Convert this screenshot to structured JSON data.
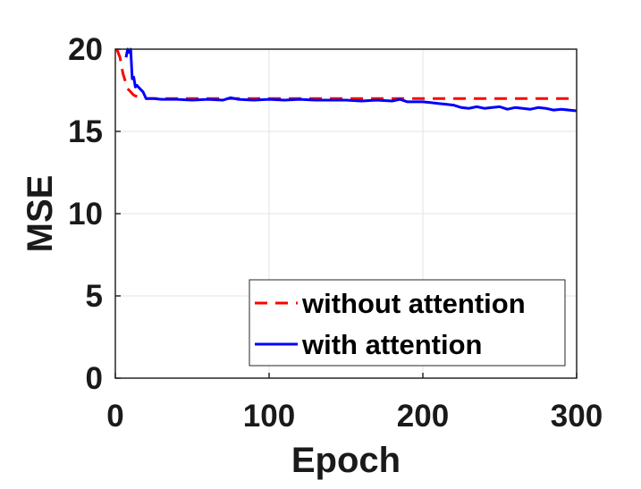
{
  "chart_data": {
    "type": "line",
    "xlabel": "Epoch",
    "ylabel": "MSE",
    "xlim": [
      0,
      300
    ],
    "ylim": [
      0,
      20
    ],
    "xticks": [
      "0",
      "100",
      "200",
      "300"
    ],
    "yticks": [
      "0",
      "5",
      "10",
      "15",
      "20"
    ],
    "grid": true,
    "legend_position": "bottom-right",
    "series": [
      {
        "name": "without attention",
        "color": "#ff0000",
        "style": "dashed",
        "x": [
          1,
          3,
          5,
          8,
          12,
          16,
          20,
          30,
          50,
          100,
          150,
          200,
          250,
          300
        ],
        "y": [
          20,
          19.5,
          18.5,
          17.6,
          17.2,
          17.05,
          17.0,
          17.0,
          17.0,
          17.0,
          17.0,
          17.0,
          17.0,
          17.0
        ]
      },
      {
        "name": "with attention",
        "color": "#0000ff",
        "style": "solid",
        "x": [
          7,
          8,
          9,
          10,
          11,
          12,
          13,
          14,
          16,
          18,
          20,
          25,
          30,
          40,
          50,
          60,
          70,
          75,
          80,
          90,
          100,
          110,
          120,
          130,
          140,
          150,
          160,
          170,
          180,
          185,
          190,
          200,
          205,
          210,
          215,
          220,
          225,
          230,
          235,
          240,
          245,
          250,
          255,
          260,
          265,
          270,
          275,
          280,
          285,
          290,
          295,
          300
        ],
        "y": [
          19.5,
          20,
          19.8,
          20,
          18.2,
          18.3,
          17.7,
          17.8,
          17.6,
          17.4,
          17.0,
          17.0,
          16.95,
          16.95,
          16.9,
          16.95,
          16.9,
          17.05,
          16.95,
          16.9,
          16.95,
          16.9,
          16.95,
          16.9,
          16.9,
          16.9,
          16.85,
          16.9,
          16.85,
          16.95,
          16.8,
          16.8,
          16.75,
          16.7,
          16.65,
          16.6,
          16.45,
          16.4,
          16.5,
          16.4,
          16.45,
          16.5,
          16.35,
          16.45,
          16.4,
          16.35,
          16.45,
          16.4,
          16.3,
          16.35,
          16.3,
          16.25
        ]
      }
    ]
  }
}
